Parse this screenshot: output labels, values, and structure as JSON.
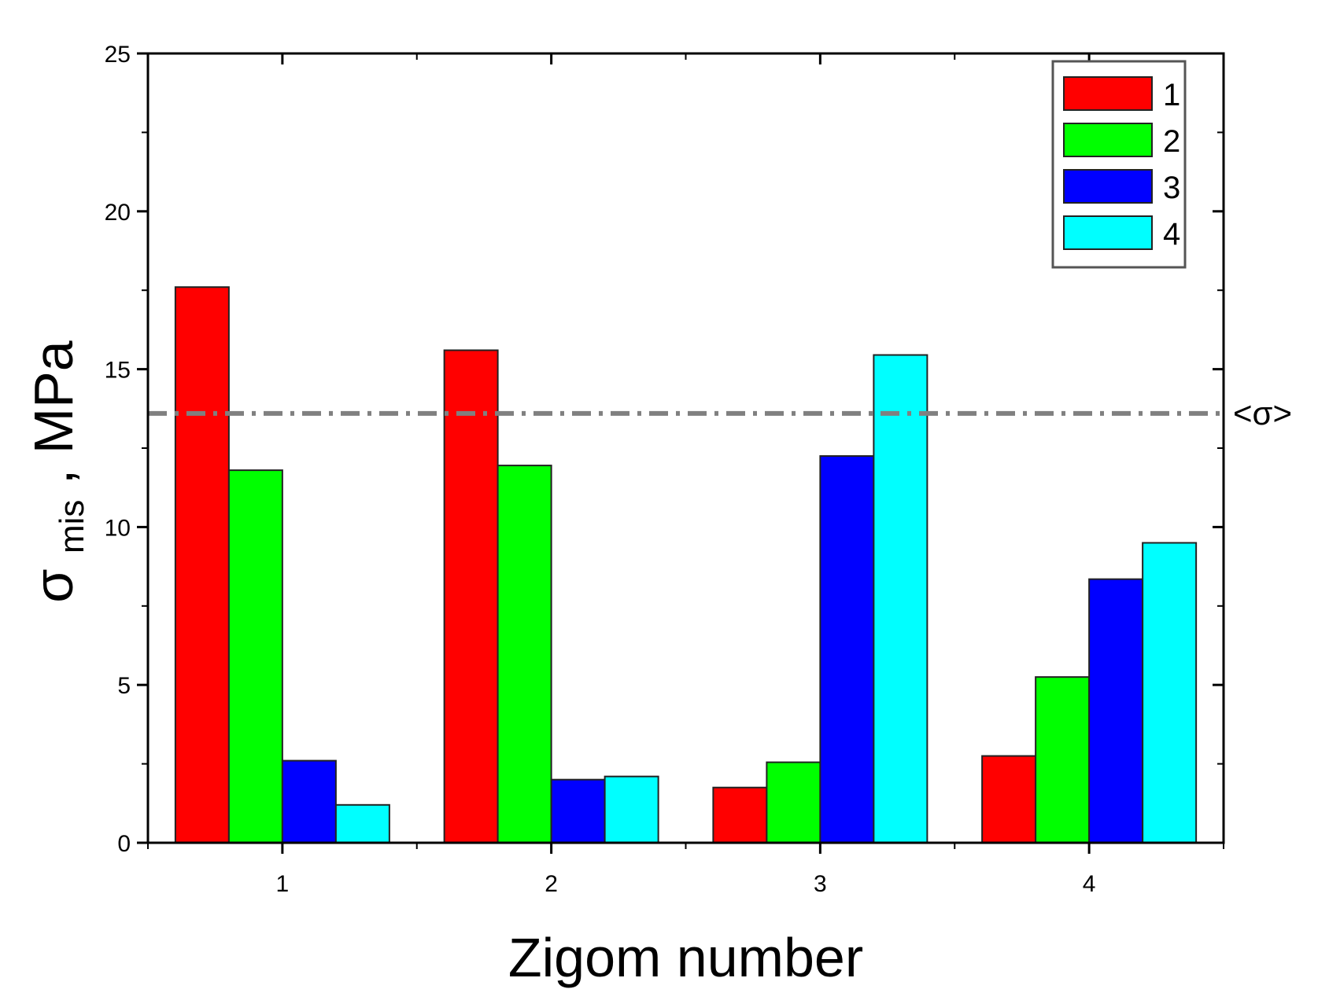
{
  "chart_data": {
    "type": "bar",
    "categories": [
      "1",
      "2",
      "3",
      "4"
    ],
    "series": [
      {
        "name": "1",
        "color": "#ff0000",
        "values": [
          17.6,
          15.6,
          1.75,
          2.75
        ]
      },
      {
        "name": "2",
        "color": "#00ff00",
        "values": [
          11.8,
          11.95,
          2.55,
          5.25
        ]
      },
      {
        "name": "3",
        "color": "#0000ff",
        "values": [
          2.6,
          2.0,
          12.25,
          8.35
        ]
      },
      {
        "name": "4",
        "color": "#00ffff",
        "values": [
          1.2,
          2.1,
          15.45,
          9.5
        ]
      }
    ],
    "reference_line": {
      "label": "<σ>",
      "value": 13.6,
      "style": "dash-dot",
      "color": "#808080"
    },
    "xlabel": "Zigom number",
    "ylabel": {
      "symbol": "σ",
      "subscript": "mis",
      "suffix": ", MPa"
    },
    "ylim": [
      0,
      25
    ],
    "yticks": [
      0,
      5,
      10,
      15,
      20,
      25
    ],
    "legend_position": "top-right",
    "grid": false
  }
}
